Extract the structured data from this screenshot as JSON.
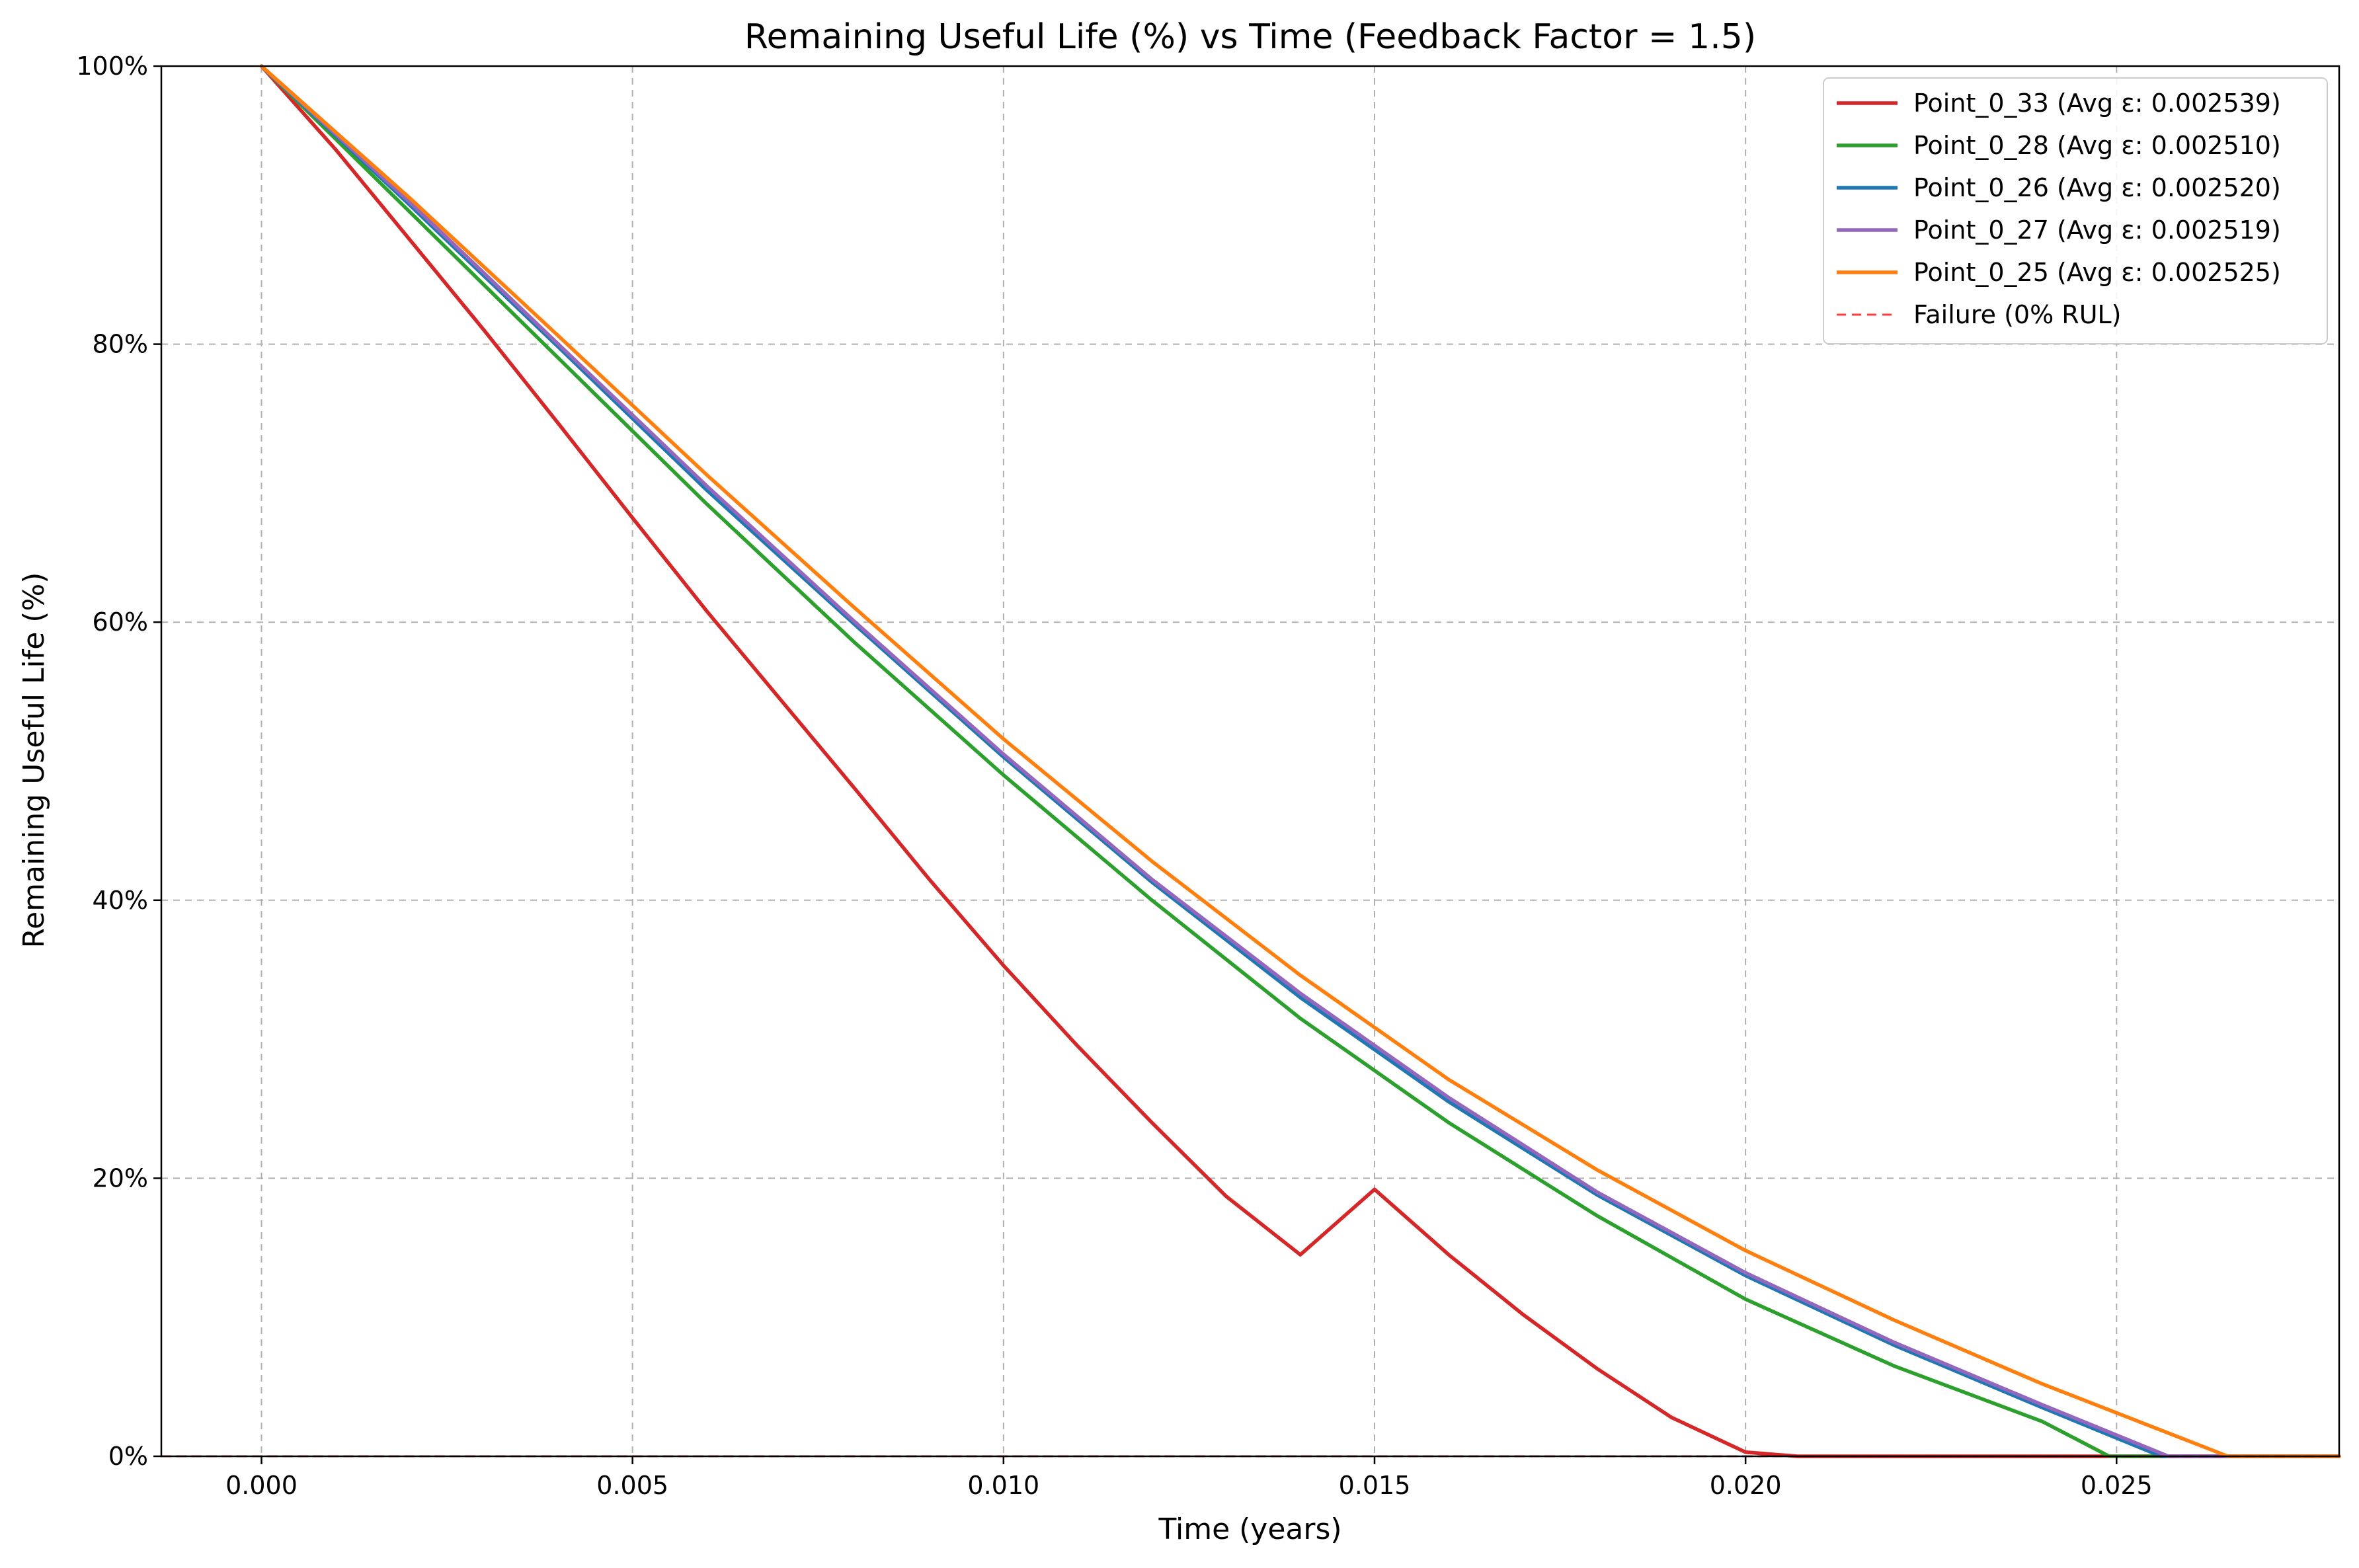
{
  "chart_data": {
    "type": "line",
    "title": "Remaining Useful Life (%) vs Time (Feedback Factor = 1.5)",
    "xlabel": "Time (years)",
    "ylabel": "Remaining Useful Life (%)",
    "xlim": [
      -0.00135,
      0.028
    ],
    "ylim": [
      0,
      100
    ],
    "x_ticks": [
      0.0,
      0.005,
      0.01,
      0.015,
      0.02,
      0.025
    ],
    "x_tick_labels": [
      "0.000",
      "0.005",
      "0.010",
      "0.015",
      "0.020",
      "0.025"
    ],
    "y_ticks": [
      0,
      20,
      40,
      60,
      80,
      100
    ],
    "y_tick_labels": [
      "0%",
      "20%",
      "40%",
      "60%",
      "80%",
      "100%"
    ],
    "grid": true,
    "legend_position": "top-right",
    "series": [
      {
        "name": "Point_0_33 (Avg ε: 0.002539)",
        "color": "#d62728",
        "style": "solid",
        "x": [
          0.0,
          0.001,
          0.002,
          0.003,
          0.004,
          0.005,
          0.006,
          0.007,
          0.008,
          0.009,
          0.01,
          0.011,
          0.012,
          0.013,
          0.014,
          0.015,
          0.016,
          0.017,
          0.018,
          0.019,
          0.02,
          0.0207,
          0.028
        ],
        "y": [
          100,
          94.0,
          87.5,
          81.0,
          74.3,
          67.5,
          60.8,
          54.4,
          48.0,
          41.5,
          35.3,
          29.5,
          24.0,
          18.7,
          14.5,
          19.2,
          14.5,
          10.2,
          6.3,
          2.8,
          0.3,
          0,
          0
        ]
      },
      {
        "name": "Point_0_28 (Avg ε: 0.002510)",
        "color": "#2ca02c",
        "style": "solid",
        "x": [
          0.0,
          0.002,
          0.004,
          0.006,
          0.008,
          0.01,
          0.012,
          0.014,
          0.016,
          0.018,
          0.02,
          0.022,
          0.024,
          0.0249,
          0.028
        ],
        "y": [
          100,
          89.5,
          79.0,
          68.5,
          58.5,
          49.0,
          40.0,
          31.5,
          24.0,
          17.3,
          11.3,
          6.5,
          2.5,
          0,
          0
        ]
      },
      {
        "name": "Point_0_26 (Avg ε: 0.002520)",
        "color": "#1f77b4",
        "style": "solid",
        "x": [
          0.0,
          0.002,
          0.004,
          0.006,
          0.008,
          0.01,
          0.012,
          0.014,
          0.016,
          0.018,
          0.02,
          0.022,
          0.024,
          0.0256,
          0.028
        ],
        "y": [
          100,
          90.0,
          79.8,
          69.5,
          59.8,
          50.3,
          41.3,
          33.0,
          25.5,
          18.8,
          13.0,
          8.0,
          3.5,
          0,
          0
        ]
      },
      {
        "name": "Point_0_27 (Avg ε: 0.002519)",
        "color": "#9467bd",
        "style": "solid",
        "x": [
          0.0,
          0.002,
          0.004,
          0.006,
          0.008,
          0.01,
          0.012,
          0.014,
          0.016,
          0.018,
          0.02,
          0.022,
          0.024,
          0.0257,
          0.028
        ],
        "y": [
          100,
          90.2,
          80.0,
          69.8,
          60.0,
          50.5,
          41.5,
          33.3,
          25.8,
          19.0,
          13.2,
          8.2,
          3.7,
          0,
          0
        ]
      },
      {
        "name": "Point_0_25 (Avg ε: 0.002525)",
        "color": "#ff7f0e",
        "style": "solid",
        "x": [
          0.0,
          0.002,
          0.004,
          0.006,
          0.008,
          0.01,
          0.012,
          0.014,
          0.016,
          0.018,
          0.02,
          0.022,
          0.024,
          0.0265,
          0.028
        ],
        "y": [
          100,
          90.5,
          80.6,
          70.6,
          61.0,
          51.6,
          42.8,
          34.6,
          27.1,
          20.6,
          14.8,
          9.8,
          5.2,
          0,
          0
        ]
      },
      {
        "name": "Failure (0% RUL)",
        "color": "#ff0000",
        "style": "dashed",
        "x": [
          -0.00135,
          0.028
        ],
        "y": [
          0,
          0
        ]
      }
    ]
  }
}
